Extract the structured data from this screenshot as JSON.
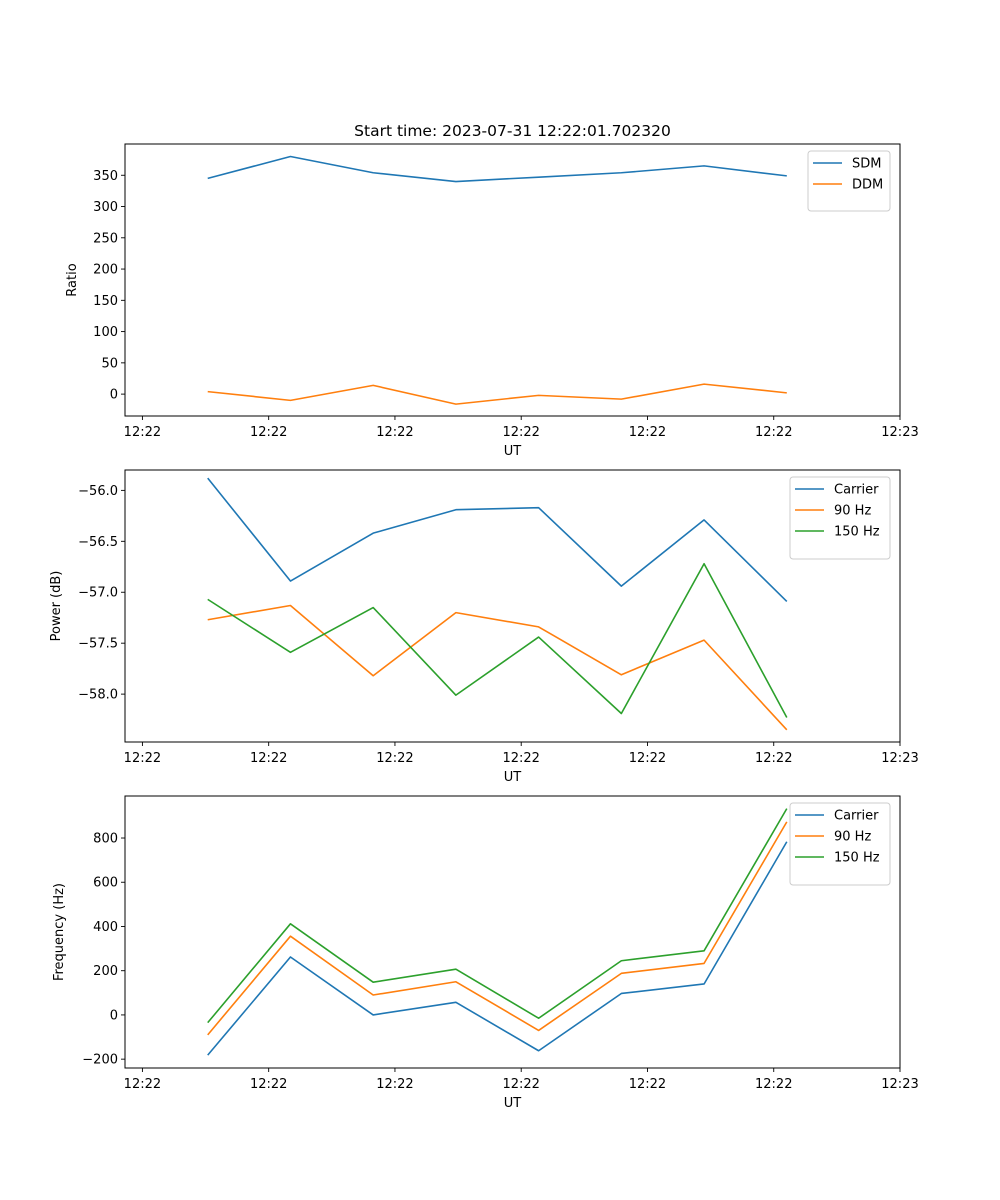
{
  "figure_title": "Start time: 2023-07-31 12:22:01.702320",
  "colors": {
    "blue": "#1f77b4",
    "orange": "#ff7f0e",
    "green": "#2ca02c"
  },
  "chart_data": [
    {
      "type": "line",
      "title": "Start time: 2023-07-31 12:22:01.702320",
      "xlabel": "UT",
      "ylabel": "Ratio",
      "xlim": [
        0.8,
        9.7
      ],
      "x_ticks": [
        1,
        2.45,
        3.9,
        5.35,
        6.8,
        8.25,
        9.7
      ],
      "x_tick_labels": [
        "12:22",
        "12:22",
        "12:22",
        "12:22",
        "12:22",
        "12:22",
        "12:23"
      ],
      "ylim": [
        -35,
        400
      ],
      "y_ticks": [
        0,
        50,
        100,
        150,
        200,
        250,
        300,
        350
      ],
      "legend": "top-right",
      "x": [
        1.75,
        2.7,
        3.65,
        4.6,
        5.55,
        6.5,
        7.45,
        8.4
      ],
      "series": [
        {
          "name": "SDM",
          "color": "#1f77b4",
          "values": [
            345,
            380,
            354,
            340,
            347,
            354,
            365,
            349
          ]
        },
        {
          "name": "DDM",
          "color": "#ff7f0e",
          "values": [
            4,
            -10,
            14,
            -16,
            -2,
            -8,
            16,
            2
          ]
        }
      ]
    },
    {
      "type": "line",
      "xlabel": "UT",
      "ylabel": "Power (dB)",
      "xlim": [
        0.8,
        9.7
      ],
      "x_ticks": [
        1,
        2.45,
        3.9,
        5.35,
        6.8,
        8.25,
        9.7
      ],
      "x_tick_labels": [
        "12:22",
        "12:22",
        "12:22",
        "12:22",
        "12:22",
        "12:22",
        "12:23"
      ],
      "ylim": [
        -58.47,
        -55.8
      ],
      "y_ticks": [
        -56.0,
        -56.5,
        -57.0,
        -57.5,
        -58.0
      ],
      "y_tick_labels": [
        "−56.0",
        "−56.5",
        "−57.0",
        "−57.5",
        "−58.0"
      ],
      "legend": "top-right",
      "x": [
        1.75,
        2.7,
        3.65,
        4.6,
        5.55,
        6.5,
        7.45,
        8.4
      ],
      "series": [
        {
          "name": "Carrier",
          "color": "#1f77b4",
          "values": [
            -55.88,
            -56.89,
            -56.42,
            -56.19,
            -56.17,
            -56.94,
            -56.29,
            -57.09
          ]
        },
        {
          "name": "90 Hz",
          "color": "#ff7f0e",
          "values": [
            -57.27,
            -57.13,
            -57.82,
            -57.2,
            -57.34,
            -57.81,
            -57.47,
            -58.35
          ]
        },
        {
          "name": "150 Hz",
          "color": "#2ca02c",
          "values": [
            -57.07,
            -57.59,
            -57.15,
            -58.01,
            -57.44,
            -58.19,
            -56.72,
            -58.23
          ]
        }
      ]
    },
    {
      "type": "line",
      "xlabel": "UT",
      "ylabel": "Frequency (Hz)",
      "xlim": [
        0.8,
        9.7
      ],
      "x_ticks": [
        1,
        2.45,
        3.9,
        5.35,
        6.8,
        8.25,
        9.7
      ],
      "x_tick_labels": [
        "12:22",
        "12:22",
        "12:22",
        "12:22",
        "12:22",
        "12:22",
        "12:23"
      ],
      "ylim": [
        -240,
        990
      ],
      "y_ticks": [
        -200,
        0,
        200,
        400,
        600,
        800
      ],
      "y_tick_labels": [
        "−200",
        "0",
        "200",
        "400",
        "600",
        "800"
      ],
      "legend": "top-right",
      "x": [
        1.75,
        2.7,
        3.65,
        4.6,
        5.55,
        6.5,
        7.45,
        8.4
      ],
      "series": [
        {
          "name": "Carrier",
          "color": "#1f77b4",
          "values": [
            -182,
            262,
            0,
            57,
            -162,
            97,
            140,
            783
          ]
        },
        {
          "name": "90 Hz",
          "color": "#ff7f0e",
          "values": [
            -90,
            356,
            90,
            150,
            -70,
            188,
            233,
            873
          ]
        },
        {
          "name": "150 Hz",
          "color": "#2ca02c",
          "values": [
            -35,
            412,
            148,
            207,
            -15,
            245,
            290,
            933
          ]
        }
      ]
    }
  ]
}
